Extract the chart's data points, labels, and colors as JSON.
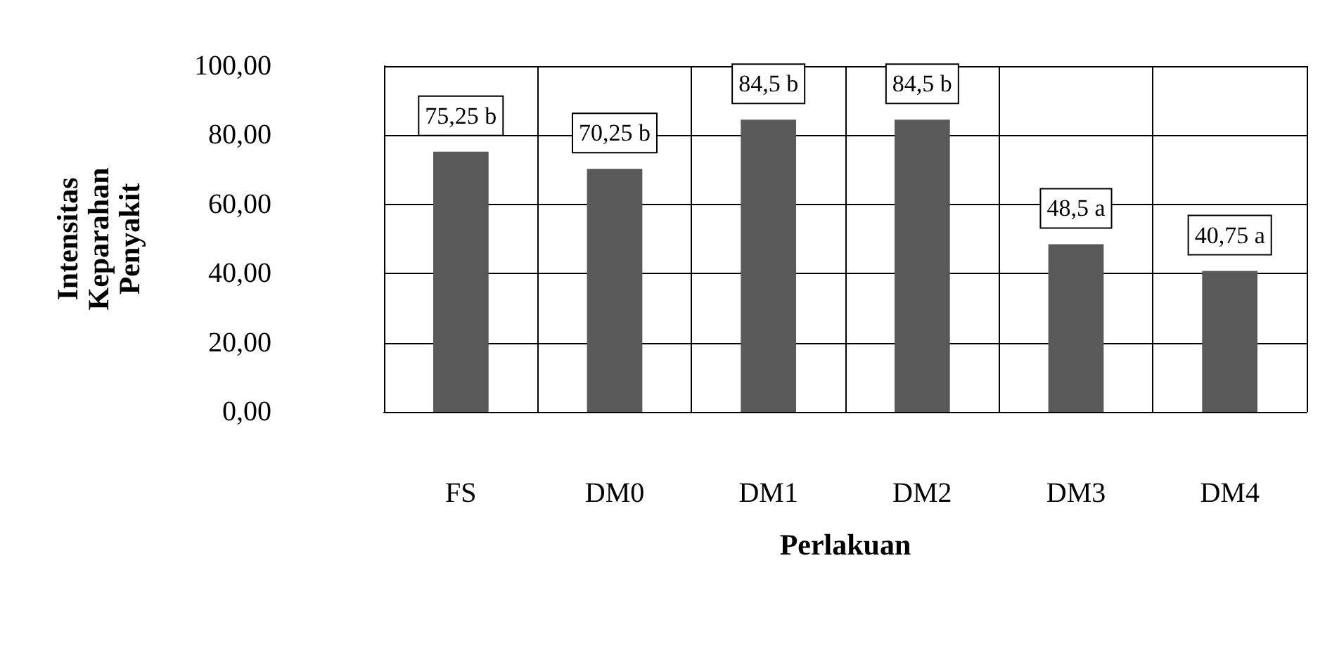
{
  "chart_data": {
    "type": "bar",
    "xlabel": "Perlakuan",
    "ylabel": "Intensitas Keparahan Penyakit",
    "categories": [
      "FS",
      "DM0",
      "DM1",
      "DM2",
      "DM3",
      "DM4"
    ],
    "series": [
      {
        "color": "#595959",
        "values": [
          75.25,
          70.25,
          84.5,
          84.5,
          48.5,
          40.75
        ],
        "value_labels": [
          "75,25 b",
          "70,25 b",
          "84,5 b",
          "84,5 b",
          "48,5 a",
          "40,75 a"
        ]
      }
    ],
    "ylim": [
      0,
      100
    ],
    "yticks": [
      {
        "value": 0,
        "label": "0,00"
      },
      {
        "value": 20,
        "label": "20,00"
      },
      {
        "value": 40,
        "label": "40,00"
      },
      {
        "value": 60,
        "label": "60,00"
      },
      {
        "value": 80,
        "label": "80,00"
      },
      {
        "value": 100,
        "label": "100,00"
      }
    ],
    "grid": true
  }
}
